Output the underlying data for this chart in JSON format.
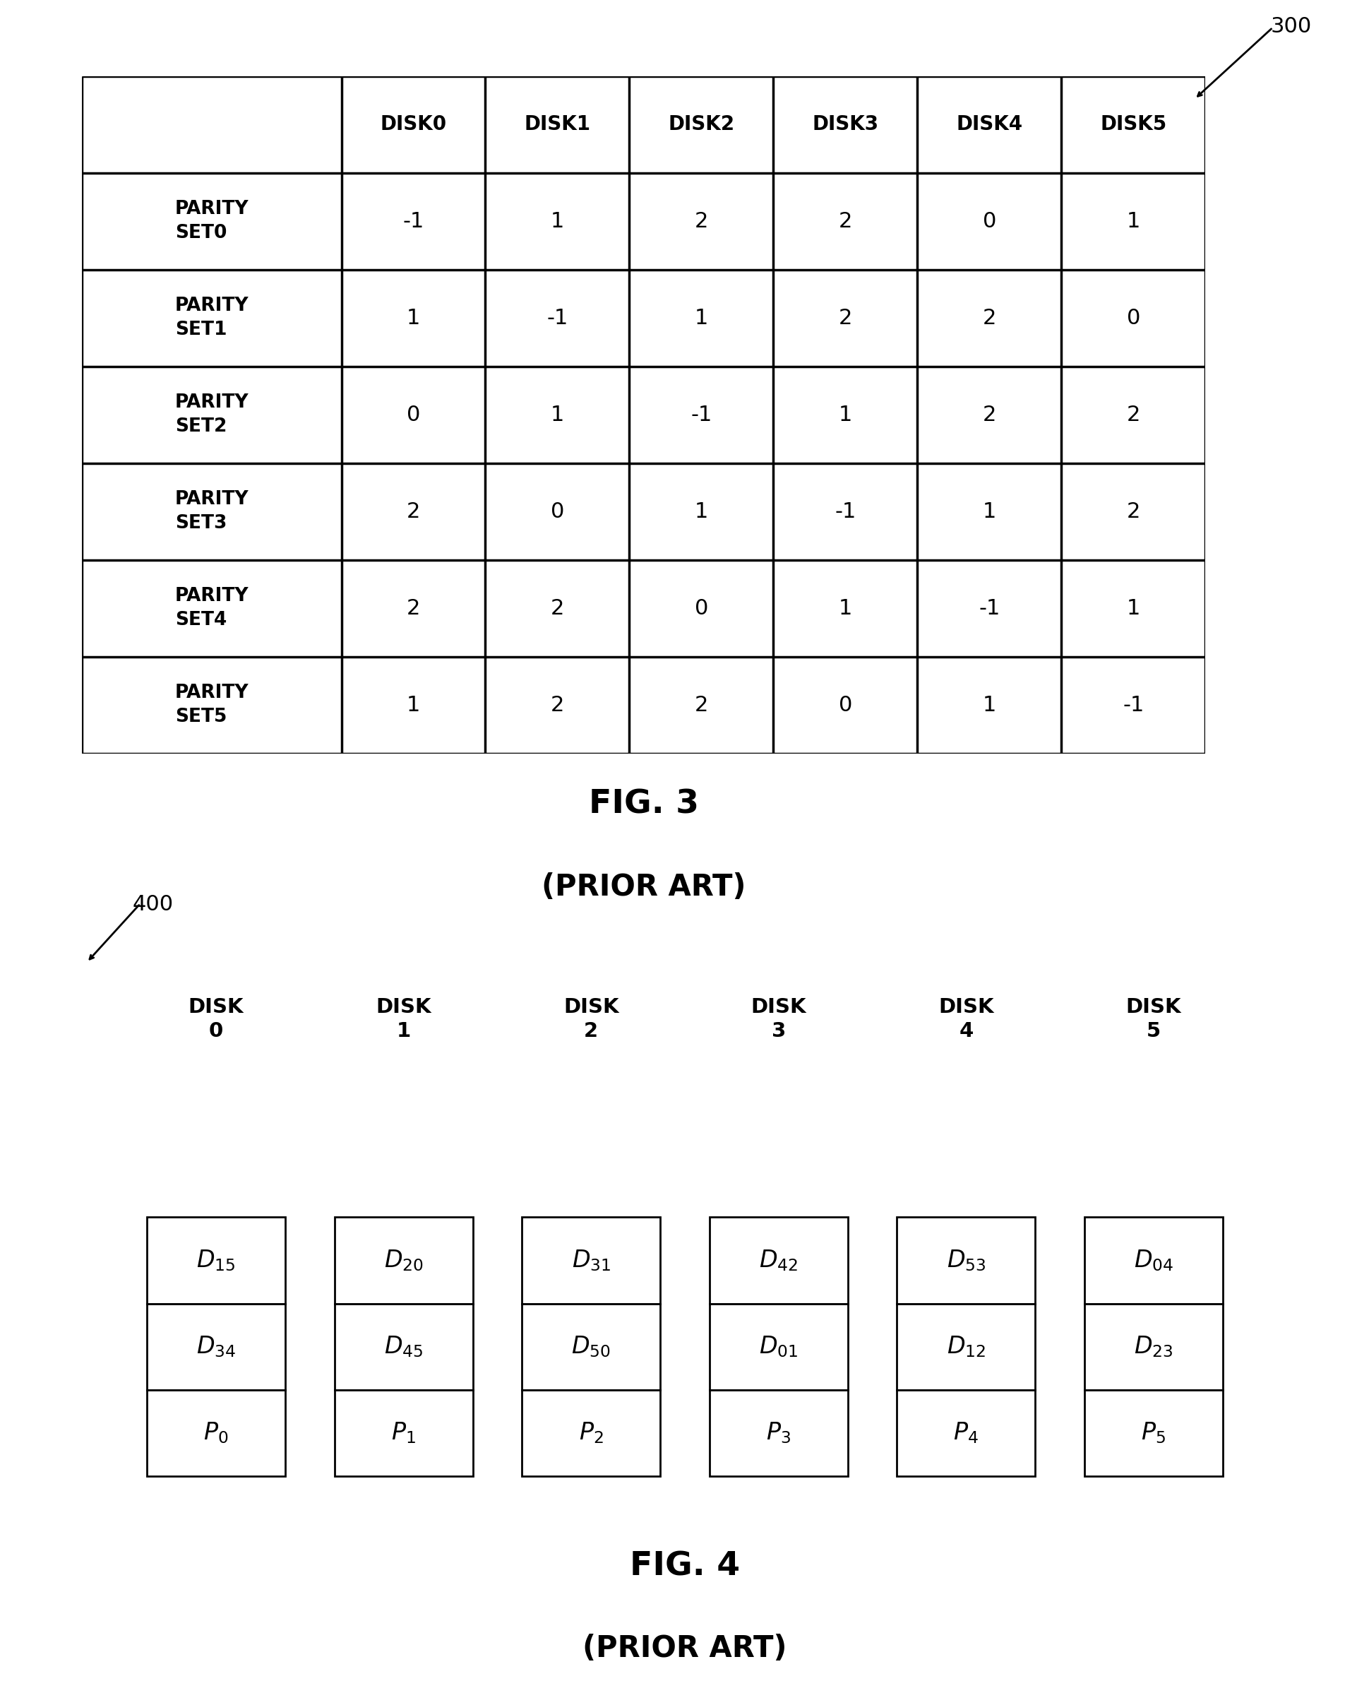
{
  "fig3": {
    "title": "FIG. 3",
    "subtitle": "(PRIOR ART)",
    "label": "300",
    "col_headers": [
      "",
      "DISK0",
      "DISK1",
      "DISK2",
      "DISK3",
      "DISK4",
      "DISK5"
    ],
    "row_headers": [
      "PARITY\nSET0",
      "PARITY\nSET1",
      "PARITY\nSET2",
      "PARITY\nSET3",
      "PARITY\nSET4",
      "PARITY\nSET5"
    ],
    "data": [
      [
        -1,
        1,
        2,
        2,
        0,
        1
      ],
      [
        1,
        -1,
        1,
        2,
        2,
        0
      ],
      [
        0,
        1,
        -1,
        1,
        2,
        2
      ],
      [
        2,
        0,
        1,
        -1,
        1,
        2
      ],
      [
        2,
        2,
        0,
        1,
        -1,
        1
      ],
      [
        1,
        2,
        2,
        0,
        1,
        -1
      ]
    ]
  },
  "fig4": {
    "title": "FIG. 4",
    "subtitle": "(PRIOR ART)",
    "label": "400",
    "disk_labels": [
      "DISK\n0",
      "DISK\n1",
      "DISK\n2",
      "DISK\n3",
      "DISK\n4",
      "DISK\n5"
    ],
    "row1": [
      "D_{15}",
      "D_{20}",
      "D_{31}",
      "D_{42}",
      "D_{53}",
      "D_{04}"
    ],
    "row2": [
      "D_{34}",
      "D_{45}",
      "D_{50}",
      "D_{01}",
      "D_{12}",
      "D_{23}"
    ],
    "row3": [
      "P_{0}",
      "P_{1}",
      "P_{2}",
      "P_{3}",
      "P_{4}",
      "P_{5}"
    ]
  },
  "bg_color": "#ffffff",
  "line_color": "#000000",
  "font_size_header": 20,
  "font_size_data": 22,
  "font_size_row_header": 19,
  "font_size_fig_title": 34,
  "font_size_fig_subtitle": 30,
  "font_size_label": 22,
  "font_size_disk_label": 21,
  "font_size_cell": 22
}
